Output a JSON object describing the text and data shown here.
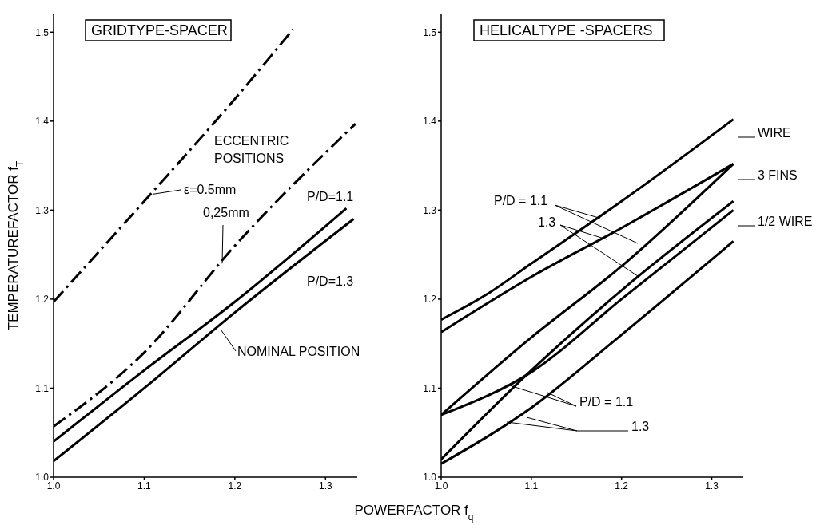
{
  "chart_data": [
    {
      "type": "line",
      "title": "GRIDTYPE-SPACER",
      "xlabel": "POWERFACTOR  f$_{q}$",
      "ylabel": "TEMPERATUREFACTOR  f$_{T}$",
      "marker": "none",
      "xlim": [
        1.0,
        1.335
      ],
      "xticks": [
        {
          "value": 1.0,
          "label": "1.0"
        },
        1.1,
        1.2,
        1.3
      ],
      "ylim": [
        1.0,
        1.52
      ],
      "yticks": [
        {
          "value": 1.0,
          "label": "1.0"
        },
        1.1,
        1.2,
        1.3,
        1.4,
        1.5
      ],
      "series": [
        {
          "color": "#000000",
          "line_style": "dashed",
          "x": [
            1.0,
            1.1,
            1.2,
            1.264
          ],
          "values": [
            1.197,
            1.31,
            1.425,
            1.503
          ]
        },
        {
          "color": "#000000",
          "line_style": "dashed",
          "x": [
            1.0,
            1.1,
            1.2,
            1.333
          ],
          "values": [
            1.057,
            1.14,
            1.26,
            1.397
          ]
        },
        {
          "color": "#000000",
          "line_style": "solid",
          "x": [
            1.0,
            1.1,
            1.2,
            1.323
          ],
          "values": [
            1.04,
            1.12,
            1.197,
            1.302
          ]
        },
        {
          "color": "#000000",
          "line_style": "solid",
          "x": [
            1.0,
            1.1,
            1.2,
            1.331
          ],
          "values": [
            1.018,
            1.1,
            1.185,
            1.29
          ]
        }
      ],
      "annotations": [
        "ECCENTRIC POSITIONS",
        {
          "text": "ε=0.5mm",
          "x": 1.11,
          "y": 1.318
        },
        {
          "text": "0,25mm",
          "x": 1.186,
          "y": 1.24
        },
        {
          "text": "P/D=1.1",
          "x": 1.323,
          "y": 1.302
        },
        "P/D=1.3",
        {
          "text": "NOMINAL POSITION",
          "x": 1.185,
          "y": 1.165
        }
      ]
    },
    {
      "type": "line",
      "title": "HELICALTYPE -SPACERS",
      "marker": "none",
      "xlim": [
        1.0,
        1.335
      ],
      "xticks": [
        {
          "value": 1.0,
          "label": "1.0"
        },
        1.1,
        1.2,
        1.3
      ],
      "ylim": [
        1.0,
        1.52
      ],
      "yticks": [
        {
          "value": 1.0,
          "label": "1.0"
        },
        1.1,
        1.2,
        1.3,
        1.4,
        1.5
      ],
      "series": [
        {
          "color": "#000000",
          "line_style": "solid",
          "x": [
            1.0,
            1.05,
            1.1,
            1.2,
            1.324
          ],
          "values": [
            1.177,
            1.205,
            1.24,
            1.31,
            1.402
          ]
        },
        {
          "color": "#000000",
          "line_style": "solid",
          "x": [
            1.0,
            1.1,
            1.2,
            1.324
          ],
          "values": [
            1.163,
            1.225,
            1.28,
            1.352
          ]
        },
        {
          "color": "#000000",
          "line_style": "solid",
          "x": [
            1.0,
            1.1,
            1.2,
            1.324
          ],
          "values": [
            1.07,
            1.157,
            1.237,
            1.352
          ]
        },
        {
          "color": "#000000",
          "line_style": "solid",
          "x": [
            1.0,
            1.1,
            1.2,
            1.324
          ],
          "values": [
            1.02,
            1.12,
            1.21,
            1.31
          ]
        },
        {
          "color": "#000000",
          "line_style": "solid",
          "x": [
            1.0,
            1.1,
            1.2,
            1.324
          ],
          "values": [
            1.07,
            1.118,
            1.2,
            1.3
          ]
        },
        {
          "color": "#000000",
          "line_style": "solid",
          "x": [
            1.0,
            1.1,
            1.2,
            1.324
          ],
          "values": [
            1.015,
            1.078,
            1.16,
            1.265
          ]
        }
      ],
      "annotations": [
        "WIRE",
        "3 FINS",
        "1/2 WIRE",
        {
          "text": "P/D = 1.1",
          "x": 1.176,
          "y": 1.291
        },
        {
          "text": "1.3",
          "x": 1.184,
          "y": 1.267
        },
        {
          "text": "P/D = 1.1",
          "x": 1.073,
          "y": 1.104
        },
        "1.3"
      ]
    }
  ]
}
